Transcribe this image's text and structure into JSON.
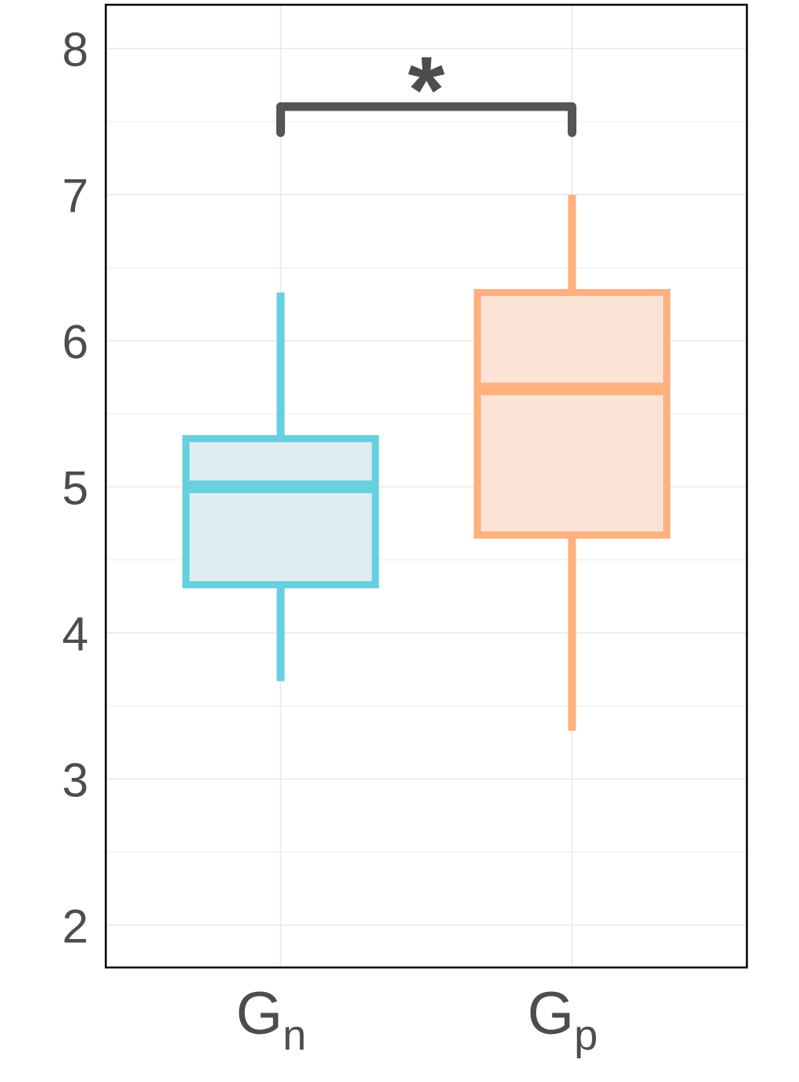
{
  "chart_data": {
    "type": "box",
    "categories": [
      "G",
      "G"
    ],
    "category_subscripts": [
      "n",
      "p"
    ],
    "boxes": [
      {
        "whisker_low": 3.67,
        "q1": 4.33,
        "median": 5.0,
        "q3": 5.33,
        "whisker_high": 6.33,
        "color": "#66d0de",
        "fill": "#deedf0"
      },
      {
        "whisker_low": 3.33,
        "q1": 4.67,
        "median": 5.67,
        "q3": 6.33,
        "whisker_high": 7.0,
        "color": "#ffb07f",
        "fill": "#fde3d6"
      }
    ],
    "annotation": "*",
    "ylim": [
      1.71,
      8.3
    ],
    "yticks": [
      2,
      3,
      4,
      5,
      6,
      7,
      8
    ],
    "minor_yticks": [
      2.5,
      3.5,
      4.5,
      5.5,
      6.5,
      7.5
    ],
    "grid": true
  }
}
